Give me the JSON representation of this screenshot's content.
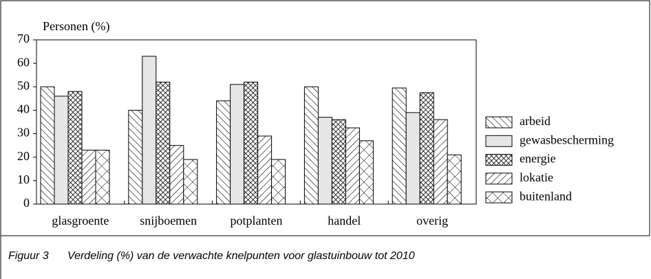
{
  "chart_data": {
    "type": "bar",
    "y_axis_label": "Personen (%)",
    "categories": [
      "glasgroente",
      "snijboemen",
      "potplanten",
      "handel",
      "overig"
    ],
    "series": [
      {
        "name": "arbeid",
        "color": "#000000",
        "pattern": "backslash",
        "values": [
          50,
          40,
          44,
          50,
          49.5
        ]
      },
      {
        "name": "gewasbescherming",
        "color": "#e6e6e6",
        "pattern": "solid",
        "values": [
          46,
          63,
          51,
          37,
          39
        ]
      },
      {
        "name": "energie",
        "color": "#000000",
        "pattern": "crosshatch",
        "values": [
          48,
          52,
          52,
          36,
          47.5
        ]
      },
      {
        "name": "lokatie",
        "color": "#000000",
        "pattern": "slash",
        "values": [
          23,
          25,
          29,
          32.5,
          36
        ]
      },
      {
        "name": "buitenland",
        "color": "#000000",
        "pattern": "cross",
        "values": [
          23,
          19,
          19,
          27,
          21
        ]
      }
    ],
    "ylim": [
      0,
      70
    ],
    "yticks": [
      0,
      10,
      20,
      30,
      40,
      50,
      60,
      70
    ],
    "legend": "right",
    "caption": {
      "label": "Figuur 3",
      "text": "Verdeling (%) van de verwachte knelpunten voor glastuinbouw tot 2010"
    }
  }
}
